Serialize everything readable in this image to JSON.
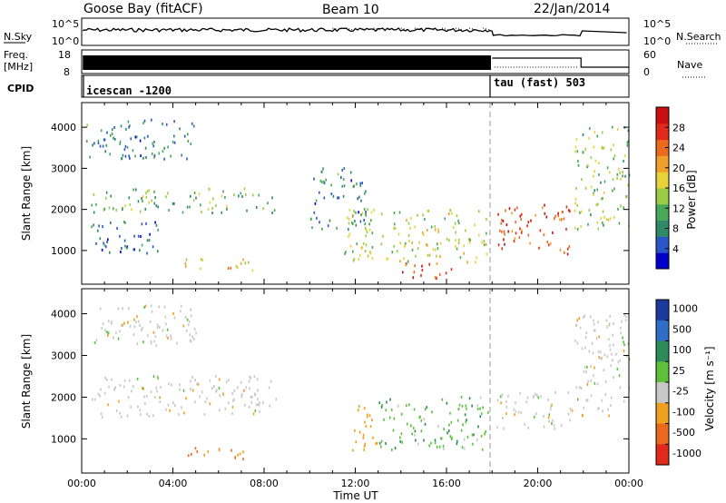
{
  "header": {
    "station": "Goose Bay (fitACF)",
    "beam": "Beam 10",
    "date": "22/Jan/2014"
  },
  "summary_panels": {
    "nsky_label": "N.Sky",
    "nsky_ticks": [
      "10^5",
      "10^0"
    ],
    "nsearch_label": "N.Search",
    "nsearch_ticks": [
      "10^5",
      "10^0"
    ],
    "freq_label_1": "Freq.",
    "freq_label_2": "[MHz]",
    "freq_ticks": [
      "18",
      "8"
    ],
    "nave_label": "Nave",
    "nave_ticks": [
      "60",
      "0"
    ],
    "cpid_label": "CPID",
    "cpid_segments": [
      "icescan -1200",
      "tau (fast) 503"
    ]
  },
  "axes": {
    "ylabel": "Slant Range [km]",
    "xlabel": "Time UT",
    "x_ticks": [
      "00:00",
      "04:00",
      "08:00",
      "12:00",
      "16:00",
      "20:00",
      "00:00"
    ],
    "y_ticks": [
      "1000",
      "2000",
      "3000",
      "4000"
    ]
  },
  "chart_data": [
    {
      "type": "heatmap",
      "title": "",
      "xlabel": "",
      "ylabel": "Slant Range [km]",
      "xlim_hours": [
        0,
        24
      ],
      "ylim_km": [
        180,
        4600
      ],
      "colorbar_label": "Power [dB]",
      "colorbar_ticks": [
        "28",
        "24",
        "20",
        "16",
        "12",
        "8",
        "4"
      ],
      "colorbar_range": [
        0,
        32
      ],
      "colormap": [
        "#0000cc",
        "#2a56c8",
        "#2f8a6a",
        "#49a85a",
        "#9ccc45",
        "#e8d23a",
        "#f0a02a",
        "#ec6a1e",
        "#e02a1a",
        "#c81010"
      ],
      "mode_change_time_h": 18.0,
      "echo_regions": [
        {
          "t_start": 0.2,
          "t_end": 5.0,
          "range_start": 3200,
          "range_end": 4200,
          "value": 8
        },
        {
          "t_start": 0.4,
          "t_end": 8.5,
          "range_start": 1900,
          "range_end": 2500,
          "value": 12
        },
        {
          "t_start": 0.3,
          "t_end": 3.5,
          "range_start": 900,
          "range_end": 1700,
          "value": 6
        },
        {
          "t_start": 4.5,
          "t_end": 7.5,
          "range_start": 500,
          "range_end": 800,
          "value": 18
        },
        {
          "t_start": 10.0,
          "t_end": 12.5,
          "range_start": 1500,
          "range_end": 3000,
          "value": 8
        },
        {
          "t_start": 11.5,
          "t_end": 17.8,
          "range_start": 700,
          "range_end": 2000,
          "value": 16
        },
        {
          "t_start": 14.0,
          "t_end": 16.5,
          "range_start": 300,
          "range_end": 700,
          "value": 26
        },
        {
          "t_start": 18.2,
          "t_end": 21.5,
          "range_start": 900,
          "range_end": 2100,
          "value": 26
        },
        {
          "t_start": 21.6,
          "t_end": 24.0,
          "range_start": 1500,
          "range_end": 4000,
          "value": 14
        }
      ]
    },
    {
      "type": "heatmap",
      "title": "",
      "xlabel": "Time UT",
      "ylabel": "Slant Range [km]",
      "xlim_hours": [
        0,
        24
      ],
      "ylim_km": [
        180,
        4600
      ],
      "colorbar_label": "Velocity [m s⁻¹]",
      "colorbar_ticks": [
        "1000",
        "500",
        "100",
        "25",
        "-25",
        "-100",
        "-500",
        "-1000"
      ],
      "colorbar_colors": [
        "#1a3a9c",
        "#2f6ec8",
        "#2f8a5a",
        "#5cc03a",
        "#c8c8c8",
        "#f0a020",
        "#ec6a1e",
        "#e02a1a"
      ],
      "mode_change_time_h": 18.0,
      "echo_regions": [
        {
          "t_start": 0.2,
          "t_end": 5.0,
          "range_start": 3200,
          "range_end": 4200,
          "value": 0
        },
        {
          "t_start": 0.4,
          "t_end": 8.5,
          "range_start": 1500,
          "range_end": 2500,
          "value": 0
        },
        {
          "t_start": 4.5,
          "t_end": 7.5,
          "range_start": 500,
          "range_end": 800,
          "value": -300
        },
        {
          "t_start": 11.8,
          "t_end": 13.0,
          "range_start": 700,
          "range_end": 1800,
          "value": -150
        },
        {
          "t_start": 13.0,
          "t_end": 17.8,
          "range_start": 700,
          "range_end": 2000,
          "value": 50
        },
        {
          "t_start": 18.2,
          "t_end": 21.5,
          "range_start": 1200,
          "range_end": 2100,
          "value": 0
        },
        {
          "t_start": 21.6,
          "t_end": 24.0,
          "range_start": 1500,
          "range_end": 4000,
          "value": 0
        }
      ]
    }
  ]
}
